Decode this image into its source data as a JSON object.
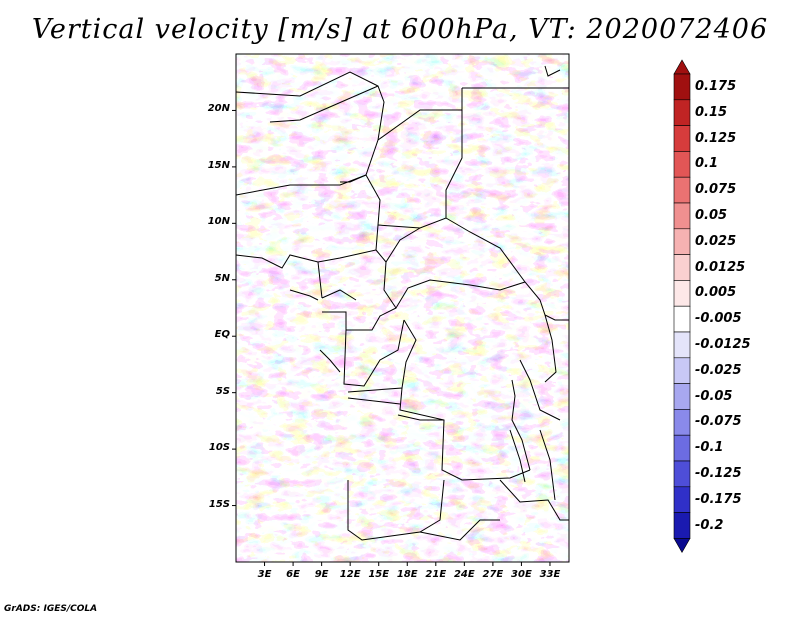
{
  "title": "Vertical velocity [m/s] at 600hPa, VT: 2020072406",
  "footer": "GrADS: IGES/COLA",
  "map": {
    "lat_labels": [
      "20N",
      "15N",
      "10N",
      "5N",
      "EQ",
      "5S",
      "10S",
      "15S"
    ],
    "lat_values": [
      20,
      15,
      10,
      5,
      0,
      -5,
      -10,
      -15
    ],
    "lon_labels": [
      "3E",
      "6E",
      "9E",
      "12E",
      "15E",
      "18E",
      "21E",
      "24E",
      "27E",
      "30E",
      "33E"
    ],
    "lon_values": [
      3,
      6,
      9,
      12,
      15,
      18,
      21,
      24,
      27,
      30,
      33
    ],
    "lon_range": [
      0,
      35
    ],
    "lat_range": [
      -20,
      25
    ]
  },
  "colorbar": {
    "labels": [
      "0.175",
      "0.15",
      "0.125",
      "0.1",
      "0.075",
      "0.05",
      "0.025",
      "0.0125",
      "0.005",
      "-0.005",
      "-0.0125",
      "-0.025",
      "-0.05",
      "-0.075",
      "-0.1",
      "-0.125",
      "-0.175",
      "-0.2"
    ],
    "colors": [
      "#a01010",
      "#c02424",
      "#d63c3c",
      "#e25656",
      "#ea7272",
      "#f09090",
      "#f6b2b2",
      "#fad0d0",
      "#fde8e8",
      "#ffffff",
      "#e4e4fa",
      "#c8c8f6",
      "#a8a8f0",
      "#8a8aea",
      "#6c6ce2",
      "#4e4ed8",
      "#3030c8",
      "#1a1ab0",
      "#0a0a90"
    ]
  }
}
